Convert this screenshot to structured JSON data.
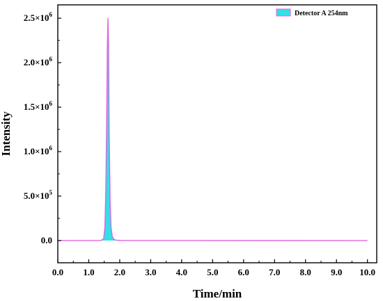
{
  "chart_data": {
    "type": "area",
    "title": "",
    "xlabel": "Time/min",
    "ylabel": "Intensity",
    "xlim": [
      0,
      10.3
    ],
    "ylim": [
      -250000,
      2650000
    ],
    "x_ticks": [
      0.0,
      1.0,
      2.0,
      3.0,
      4.0,
      5.0,
      6.0,
      7.0,
      8.0,
      9.0,
      10.0
    ],
    "x_tick_labels": [
      "0.0",
      "1.0",
      "2.0",
      "3.0",
      "4.0",
      "5.0",
      "6.0",
      "7.0",
      "8.0",
      "9.0",
      "10.0"
    ],
    "y_ticks": [
      0,
      500000,
      1000000,
      1500000,
      2000000,
      2500000
    ],
    "y_tick_labels": [
      {
        "mantissa": "0.0",
        "exponent": ""
      },
      {
        "mantissa": "5.0×10",
        "exponent": "5"
      },
      {
        "mantissa": "1.0×10",
        "exponent": "6"
      },
      {
        "mantissa": "1.5×10",
        "exponent": "6"
      },
      {
        "mantissa": "2.0×10",
        "exponent": "6"
      },
      {
        "mantissa": "2.5×10",
        "exponent": "6"
      }
    ],
    "grid": false,
    "legend_position": "top-right",
    "series": [
      {
        "name": "Detector A 254nm",
        "fill_color": "#33e0e6",
        "line_color": "#e066e0",
        "x": [
          0.0,
          1.4,
          1.48,
          1.52,
          1.55,
          1.58,
          1.6,
          1.62,
          1.64,
          1.66,
          1.69,
          1.72,
          1.76,
          1.82,
          1.9,
          2.1,
          10.0
        ],
        "y": [
          0,
          1000,
          20000,
          150000,
          550000,
          1400000,
          2200000,
          2500000,
          2200000,
          1200000,
          450000,
          150000,
          45000,
          12000,
          3000,
          500,
          0
        ]
      }
    ]
  }
}
